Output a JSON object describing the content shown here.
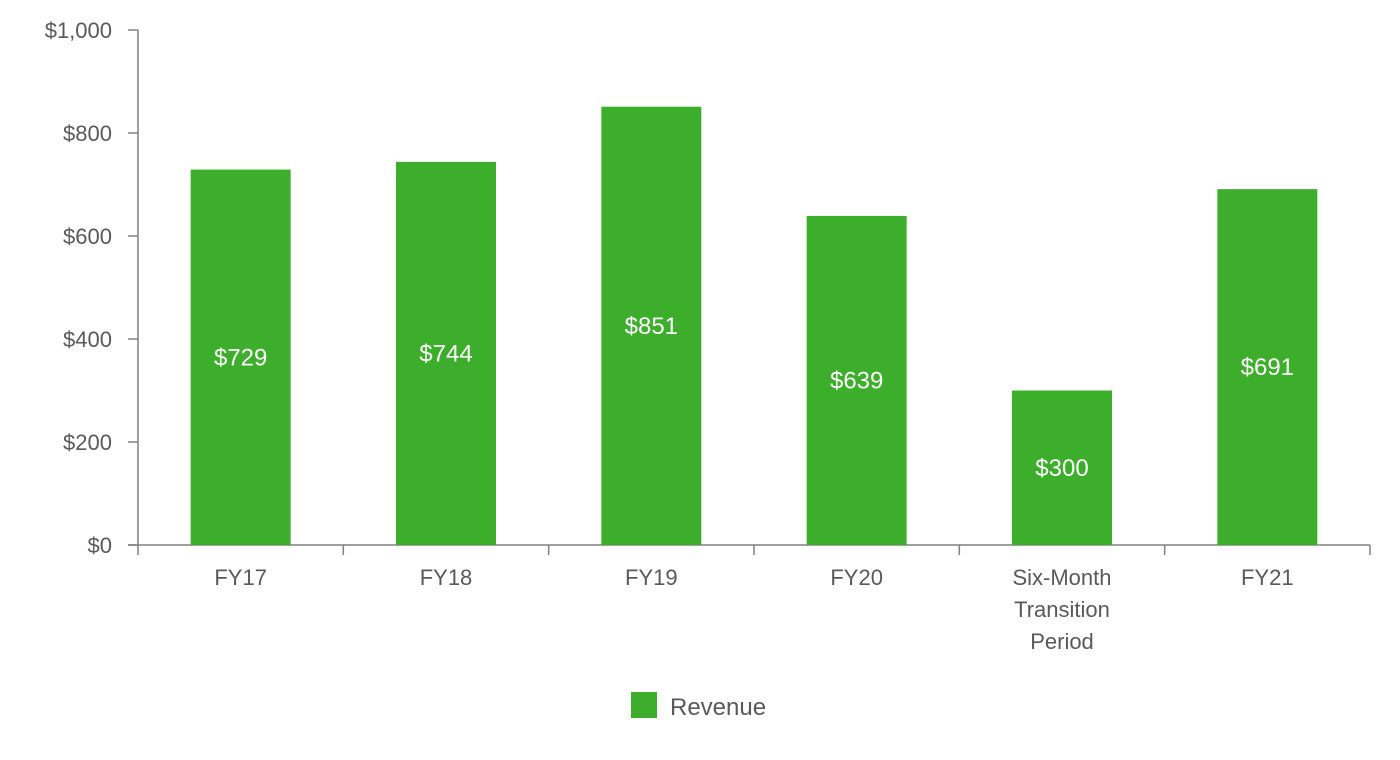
{
  "chart_data": {
    "type": "bar",
    "categories": [
      "FY17",
      "FY18",
      "FY19",
      "FY20",
      "Six-Month Transition Period",
      "FY21"
    ],
    "category_lines": [
      [
        "FY17"
      ],
      [
        "FY18"
      ],
      [
        "FY19"
      ],
      [
        "FY20"
      ],
      [
        "Six-Month",
        "Transition",
        "Period"
      ],
      [
        "FY21"
      ]
    ],
    "series": [
      {
        "name": "Revenue",
        "values": [
          729,
          744,
          851,
          639,
          300,
          691
        ],
        "color": "#3DAE2B"
      }
    ],
    "data_labels": [
      "$729",
      "$744",
      "$851",
      "$639",
      "$300",
      "$691"
    ],
    "ylim": [
      0,
      1000
    ],
    "yticks": [
      0,
      200,
      400,
      600,
      800,
      1000
    ],
    "ytick_labels": [
      "$0",
      "$200",
      "$400",
      "$600",
      "$800",
      "$1,000"
    ],
    "xlabel": "",
    "ylabel": "",
    "title": "",
    "grid": false,
    "legend": {
      "position": "bottom-center",
      "entries": [
        "Revenue"
      ]
    },
    "colors": {
      "axis": "#808080",
      "text": "#595959",
      "label": "#ffffff"
    }
  }
}
